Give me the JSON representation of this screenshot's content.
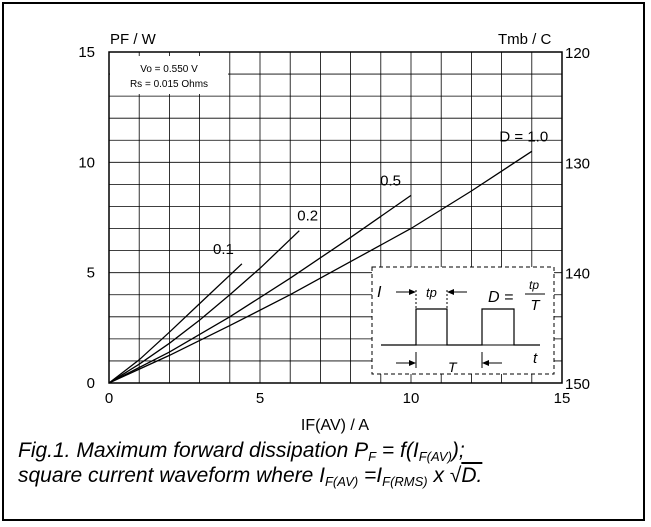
{
  "chart_data": {
    "type": "line",
    "y_label": "PF / W",
    "y2_label": "Tmb / C",
    "x_label": "IF(AV) / A",
    "xlim": [
      0,
      15
    ],
    "ylim": [
      0,
      15
    ],
    "y2lim": [
      120,
      150
    ],
    "x_ticks": [
      "0",
      "5",
      "10",
      "15"
    ],
    "y_ticks": [
      "0",
      "5",
      "10",
      "15"
    ],
    "y2_ticks": [
      "120",
      "130",
      "140",
      "150"
    ],
    "grid": true,
    "params": [
      "Vo = 0.550 V",
      "Rs = 0.015 Ohms"
    ],
    "series": [
      {
        "name": "0.1",
        "x": [
          0,
          1,
          2,
          3,
          4.4
        ],
        "y": [
          0,
          1.05,
          2.3,
          3.6,
          5.4
        ]
      },
      {
        "name": "0.2",
        "x": [
          0,
          1,
          2,
          3,
          4,
          5,
          6.3
        ],
        "y": [
          0,
          0.85,
          1.8,
          2.85,
          4.0,
          5.2,
          6.9
        ]
      },
      {
        "name": "0.5",
        "x": [
          0,
          2,
          4,
          6,
          8,
          10
        ],
        "y": [
          0,
          1.4,
          3.0,
          4.75,
          6.6,
          8.5
        ]
      },
      {
        "name": "D = 1.0",
        "x": [
          0,
          2,
          4,
          6,
          8,
          10,
          12,
          14
        ],
        "y": [
          0,
          1.25,
          2.6,
          4.0,
          5.5,
          7.0,
          8.7,
          10.5
        ]
      }
    ],
    "inset": {
      "y_label": "I",
      "x_label": "t",
      "tp_label": "tp",
      "period_label": "T",
      "formula_lhs": "D =",
      "formula_num": "tp",
      "formula_den": "T"
    }
  },
  "caption": {
    "line1_a": "Fig.1.   Maximum forward dissipation P",
    "line1_sub1": "F",
    "line1_b": " = f(I",
    "line1_sub2": "F(AV)",
    "line1_c": ");",
    "line2_a": "square current waveform where I",
    "line2_sub1": "F(AV)",
    "line2_b": " =I",
    "line2_sub2": "F(RMS)",
    "line2_c": " x ",
    "line2_sqrt": "√",
    "line2_d": "D."
  }
}
